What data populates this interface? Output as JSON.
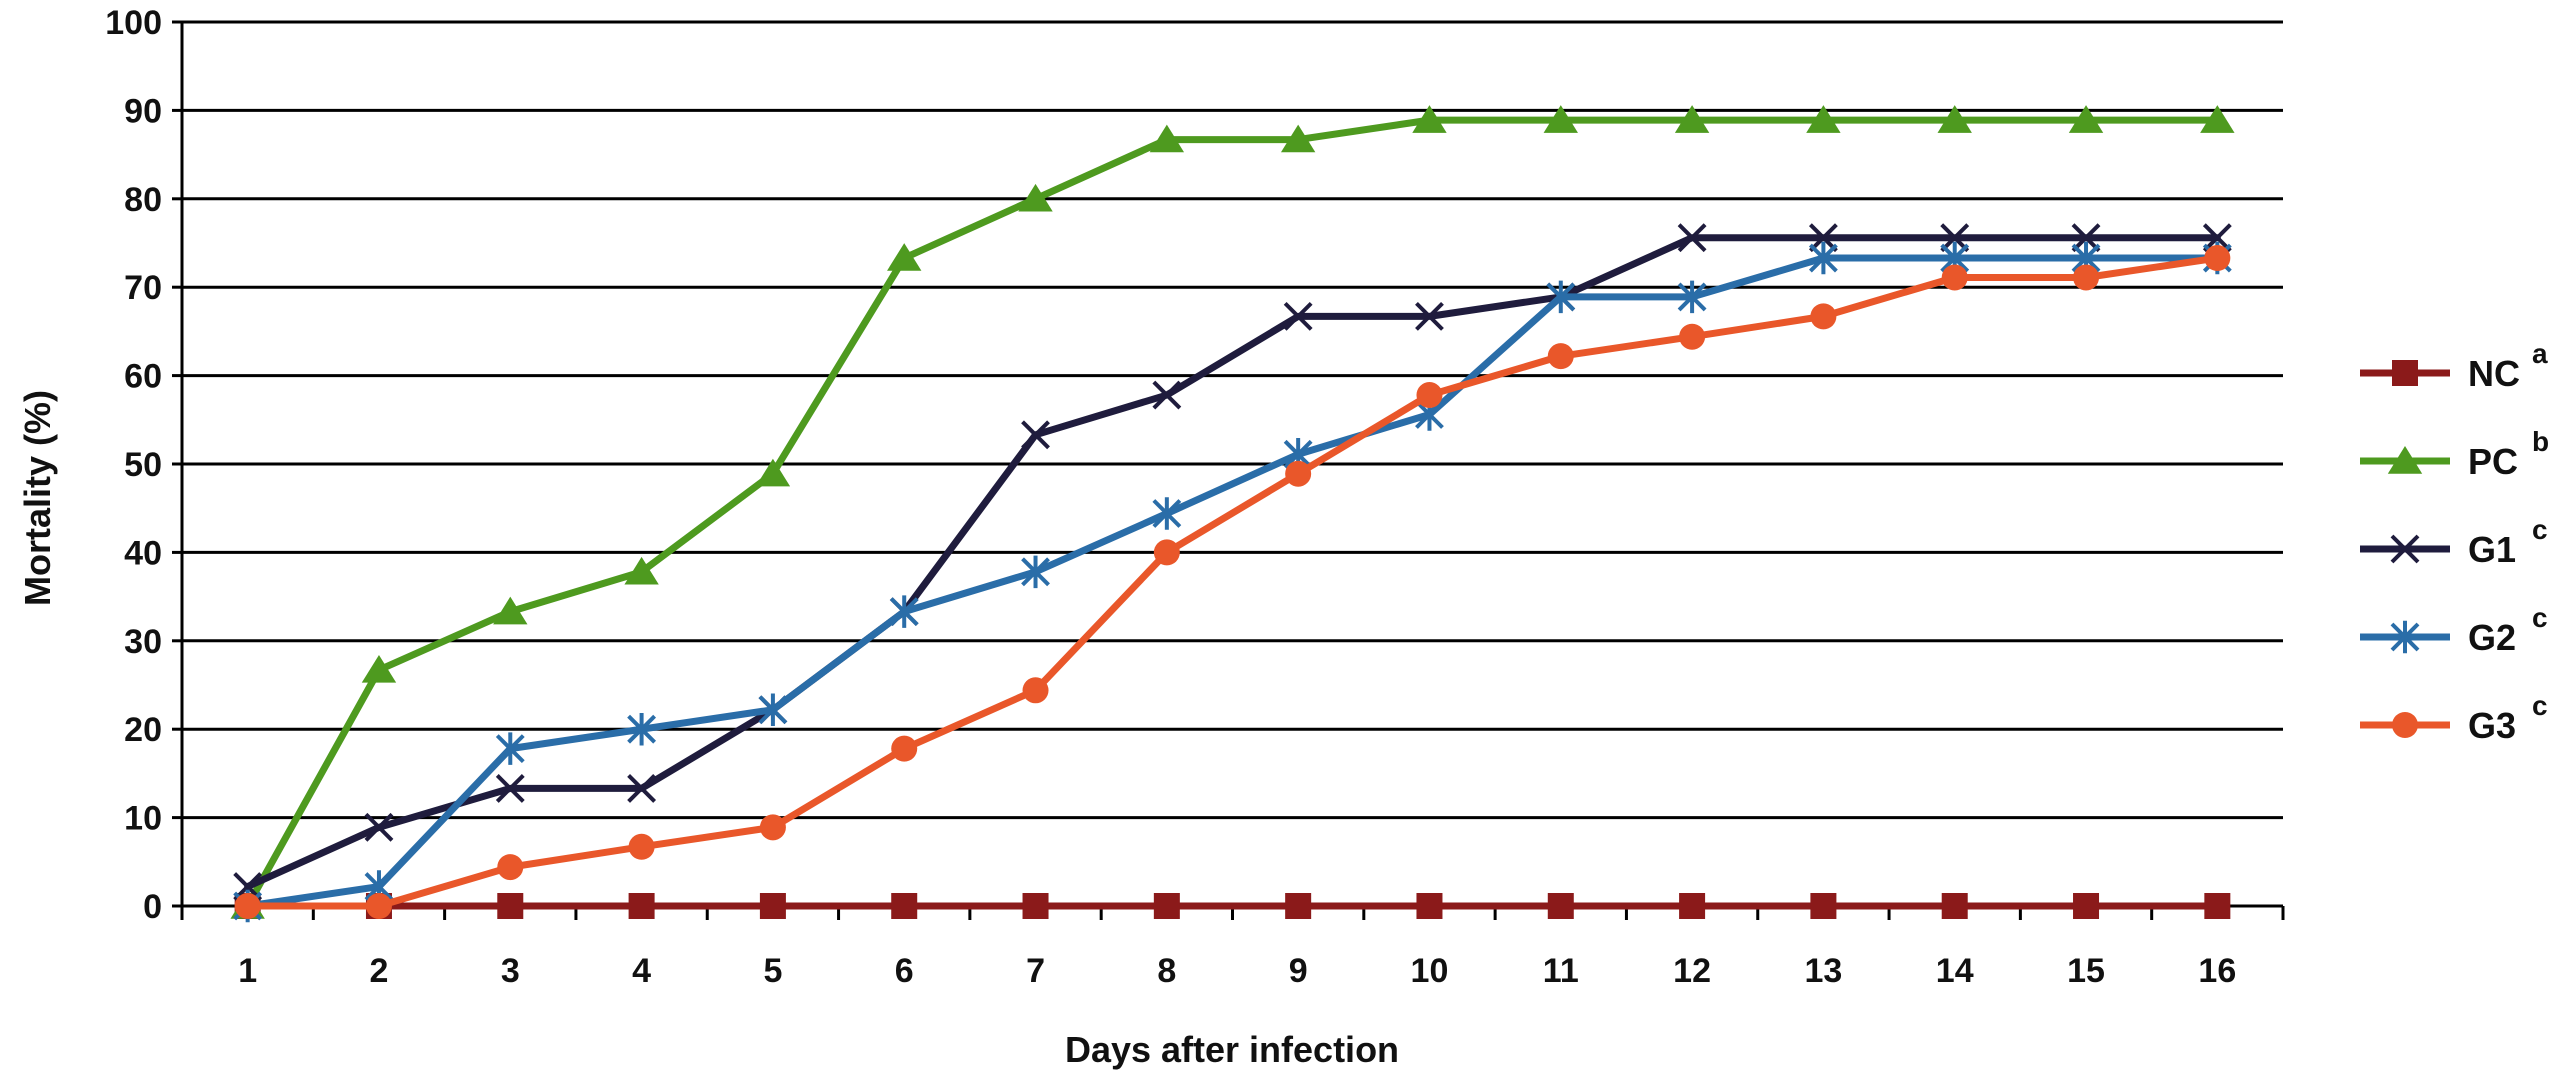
{
  "chart_data": {
    "type": "line",
    "title": "",
    "xlabel": "Days after infection",
    "ylabel": "Mortality (%)",
    "x": [
      1,
      2,
      3,
      4,
      5,
      6,
      7,
      8,
      9,
      10,
      11,
      12,
      13,
      14,
      15,
      16
    ],
    "ylim": [
      0,
      100
    ],
    "yticks": [
      0,
      10,
      20,
      30,
      40,
      50,
      60,
      70,
      80,
      90,
      100
    ],
    "grid": true,
    "legend_position": "right",
    "series": [
      {
        "name": "NC",
        "sup": "a",
        "color": "#8B1A1A",
        "marker": "square",
        "values": [
          0,
          0,
          0,
          0,
          0,
          0,
          0,
          0,
          0,
          0,
          0,
          0,
          0,
          0,
          0,
          0
        ]
      },
      {
        "name": "PC",
        "sup": "b",
        "color": "#4E9A1F",
        "marker": "triangle",
        "values": [
          0,
          26.7,
          33.3,
          37.8,
          48.9,
          73.3,
          80,
          86.7,
          86.7,
          88.9,
          88.9,
          88.9,
          88.9,
          88.9,
          88.9,
          88.9
        ]
      },
      {
        "name": "G1",
        "sup": "c",
        "color": "#1F1C3D",
        "marker": "x",
        "values": [
          2.2,
          8.9,
          13.3,
          13.3,
          22.2,
          33.3,
          53.3,
          57.8,
          66.7,
          66.7,
          68.9,
          75.6,
          75.6,
          75.6,
          75.6,
          75.6
        ]
      },
      {
        "name": "G2",
        "sup": "c",
        "color": "#2A6DA8",
        "marker": "star",
        "values": [
          0,
          2.2,
          17.8,
          20,
          22.2,
          33.3,
          37.8,
          44.4,
          51.1,
          55.6,
          68.9,
          68.9,
          73.3,
          73.3,
          73.3,
          73.3
        ]
      },
      {
        "name": "G3",
        "sup": "c",
        "color": "#E9572A",
        "marker": "circle",
        "values": [
          0,
          0,
          4.4,
          6.7,
          8.9,
          17.8,
          24.4,
          40,
          48.9,
          57.8,
          62.2,
          64.4,
          66.7,
          71.1,
          71.1,
          73.3
        ]
      }
    ]
  }
}
